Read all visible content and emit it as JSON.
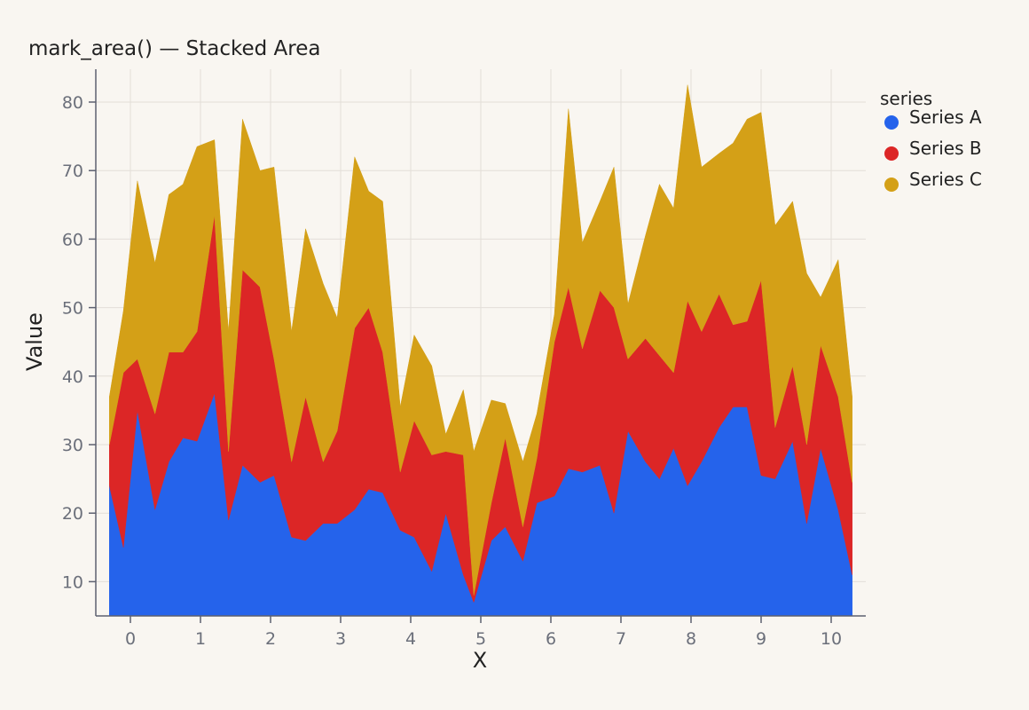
{
  "chart_data": {
    "type": "area",
    "stacked": true,
    "title": "mark_area() — Stacked Area",
    "xlabel": "X",
    "ylabel": "Value",
    "xlim": [
      -0.3,
      10.3
    ],
    "ylim": [
      5,
      85
    ],
    "x_ticks": [
      0,
      1,
      2,
      3,
      4,
      5,
      6,
      7,
      8,
      9,
      10
    ],
    "y_ticks": [
      10,
      20,
      30,
      40,
      50,
      60,
      70,
      80
    ],
    "grid": true,
    "legend": {
      "title": "series",
      "placement": "right",
      "items": [
        {
          "label": "Series A",
          "color": "#2563eb"
        },
        {
          "label": "Series B",
          "color": "#dc2626"
        },
        {
          "label": "Series C",
          "color": "#d4a017"
        }
      ]
    },
    "x": [
      -0.3,
      -0.1,
      0.1,
      0.35,
      0.55,
      0.75,
      0.95,
      1.2,
      1.4,
      1.6,
      1.85,
      2.05,
      2.3,
      2.5,
      2.75,
      2.95,
      3.2,
      3.4,
      3.6,
      3.85,
      4.05,
      4.3,
      4.5,
      4.75,
      4.9,
      5.15,
      5.35,
      5.6,
      5.8,
      6.05,
      6.25,
      6.45,
      6.7,
      6.9,
      7.1,
      7.35,
      7.55,
      7.75,
      7.95,
      8.15,
      8.4,
      8.6,
      8.8,
      9.0,
      9.2,
      9.45,
      9.65,
      9.85,
      10.1,
      10.3
    ],
    "series": [
      {
        "name": "Series A",
        "color": "#2563eb",
        "values": [
          24.0,
          15.0,
          35.0,
          20.5,
          27.5,
          31.0,
          30.5,
          37.5,
          19.0,
          27.0,
          24.5,
          25.5,
          16.5,
          16.0,
          18.5,
          18.5,
          20.5,
          23.5,
          23.0,
          17.5,
          16.5,
          11.5,
          20.0,
          11.0,
          7.0,
          16.0,
          18.0,
          13.0,
          21.5,
          22.5,
          26.5,
          26.0,
          27.0,
          20.0,
          32.0,
          27.5,
          25.0,
          29.5,
          24.0,
          27.5,
          32.5,
          35.5,
          35.5,
          25.5,
          25.0,
          30.5,
          18.5,
          29.5,
          20.5,
          11.0
        ]
      },
      {
        "name": "Series B",
        "color": "#dc2626",
        "values": [
          6.0,
          25.5,
          7.5,
          14.0,
          16.0,
          12.5,
          16.0,
          26.0,
          10.0,
          28.5,
          28.5,
          17.0,
          11.0,
          21.0,
          9.0,
          13.5,
          26.5,
          26.5,
          20.5,
          8.5,
          17.0,
          17.0,
          9.0,
          17.5,
          1.0,
          5.5,
          13.0,
          5.0,
          6.5,
          22.5,
          26.5,
          18.0,
          25.5,
          30.0,
          10.5,
          18.0,
          18.0,
          11.0,
          27.0,
          19.0,
          19.5,
          12.0,
          12.5,
          28.5,
          7.5,
          11.0,
          11.5,
          15.0,
          16.5,
          13.5
        ]
      },
      {
        "name": "Series C",
        "color": "#d4a017",
        "values": [
          7.0,
          9.0,
          26.0,
          22.0,
          23.0,
          24.5,
          27.0,
          11.0,
          17.5,
          22.0,
          17.0,
          28.0,
          19.0,
          24.5,
          26.0,
          16.5,
          25.0,
          17.0,
          22.0,
          9.5,
          12.5,
          13.0,
          2.5,
          9.5,
          21.0,
          15.0,
          5.0,
          9.5,
          6.5,
          4.0,
          26.0,
          15.5,
          13.0,
          20.5,
          8.0,
          15.0,
          25.0,
          24.0,
          31.5,
          24.0,
          20.5,
          26.5,
          29.5,
          24.5,
          29.5,
          24.0,
          25.0,
          7.0,
          20.0,
          12.5
        ]
      }
    ]
  }
}
